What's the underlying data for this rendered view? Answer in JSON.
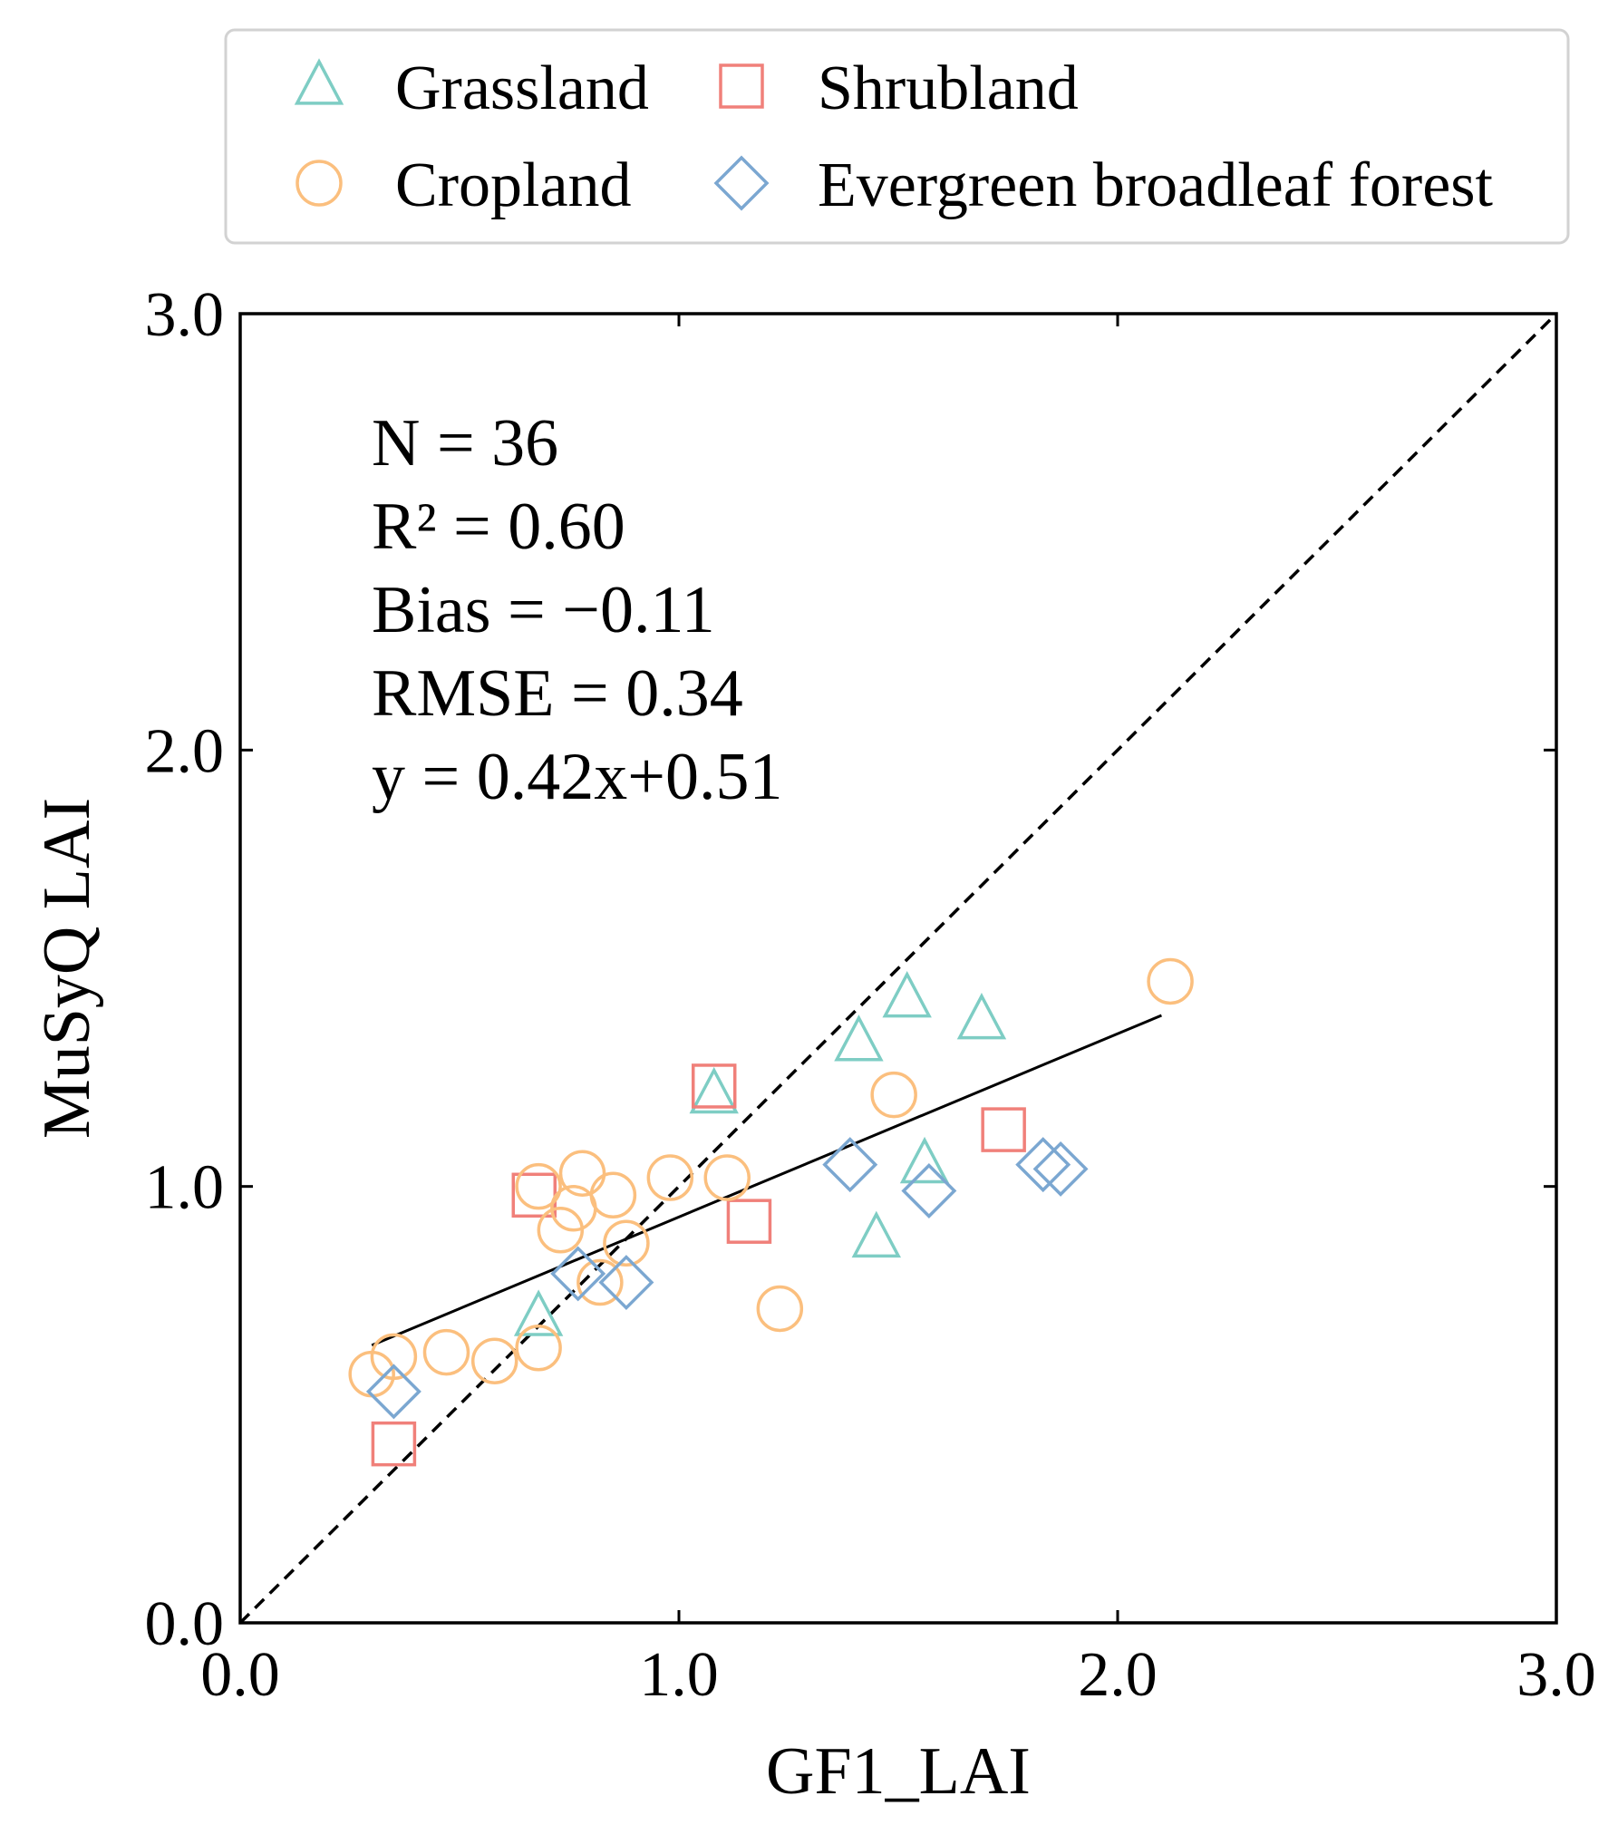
{
  "chart_data": {
    "type": "scatter",
    "title": "",
    "xlabel": "GF1_LAI",
    "ylabel": "MuSyQ LAI",
    "xlim": [
      0,
      3
    ],
    "ylim": [
      0,
      3
    ],
    "xticks": [
      "0.0",
      "1.0",
      "2.0",
      "3.0"
    ],
    "yticks": [
      "0.0",
      "1.0",
      "2.0",
      "3.0"
    ],
    "grid": false,
    "legend_position": "top",
    "stats": [
      "N = 36",
      "R² = 0.60",
      "Bias = −0.11",
      "RMSE = 0.34",
      "y = 0.42x+0.51"
    ],
    "fit": {
      "slope": 0.42,
      "intercept": 0.51,
      "x": [
        0.3,
        2.1
      ]
    },
    "identity_line": true,
    "series": [
      {
        "name": "Grassland",
        "marker": "triangle",
        "color": "#7ecdc4",
        "points": [
          [
            0.68,
            0.7
          ],
          [
            1.08,
            1.21
          ],
          [
            1.41,
            1.33
          ],
          [
            1.52,
            1.43
          ],
          [
            1.69,
            1.38
          ],
          [
            1.56,
            1.05
          ],
          [
            1.45,
            0.88
          ]
        ]
      },
      {
        "name": "Shrubland",
        "marker": "square",
        "color": "#f0807a",
        "points": [
          [
            0.35,
            0.41
          ],
          [
            0.67,
            0.98
          ],
          [
            1.08,
            1.23
          ],
          [
            1.16,
            0.92
          ],
          [
            1.74,
            1.13
          ]
        ]
      },
      {
        "name": "Cropland",
        "marker": "circle",
        "color": "#fbbf7e",
        "points": [
          [
            0.3,
            0.57
          ],
          [
            0.35,
            0.61
          ],
          [
            0.47,
            0.62
          ],
          [
            0.58,
            0.6
          ],
          [
            0.68,
            0.63
          ],
          [
            0.68,
            1.0
          ],
          [
            0.73,
            0.9
          ],
          [
            0.76,
            0.95
          ],
          [
            0.78,
            1.03
          ],
          [
            0.82,
            0.78
          ],
          [
            0.85,
            0.98
          ],
          [
            0.88,
            0.87
          ],
          [
            0.98,
            1.02
          ],
          [
            1.11,
            1.02
          ],
          [
            1.23,
            0.72
          ],
          [
            1.49,
            1.21
          ],
          [
            2.12,
            1.47
          ]
        ]
      },
      {
        "name": "Evergreen broadleaf forest",
        "marker": "diamond",
        "color": "#7ba7d1",
        "points": [
          [
            0.35,
            0.53
          ],
          [
            0.77,
            0.8
          ],
          [
            0.88,
            0.78
          ],
          [
            1.39,
            1.05
          ],
          [
            1.57,
            0.99
          ],
          [
            1.83,
            1.05
          ],
          [
            1.87,
            1.04
          ]
        ]
      }
    ]
  }
}
